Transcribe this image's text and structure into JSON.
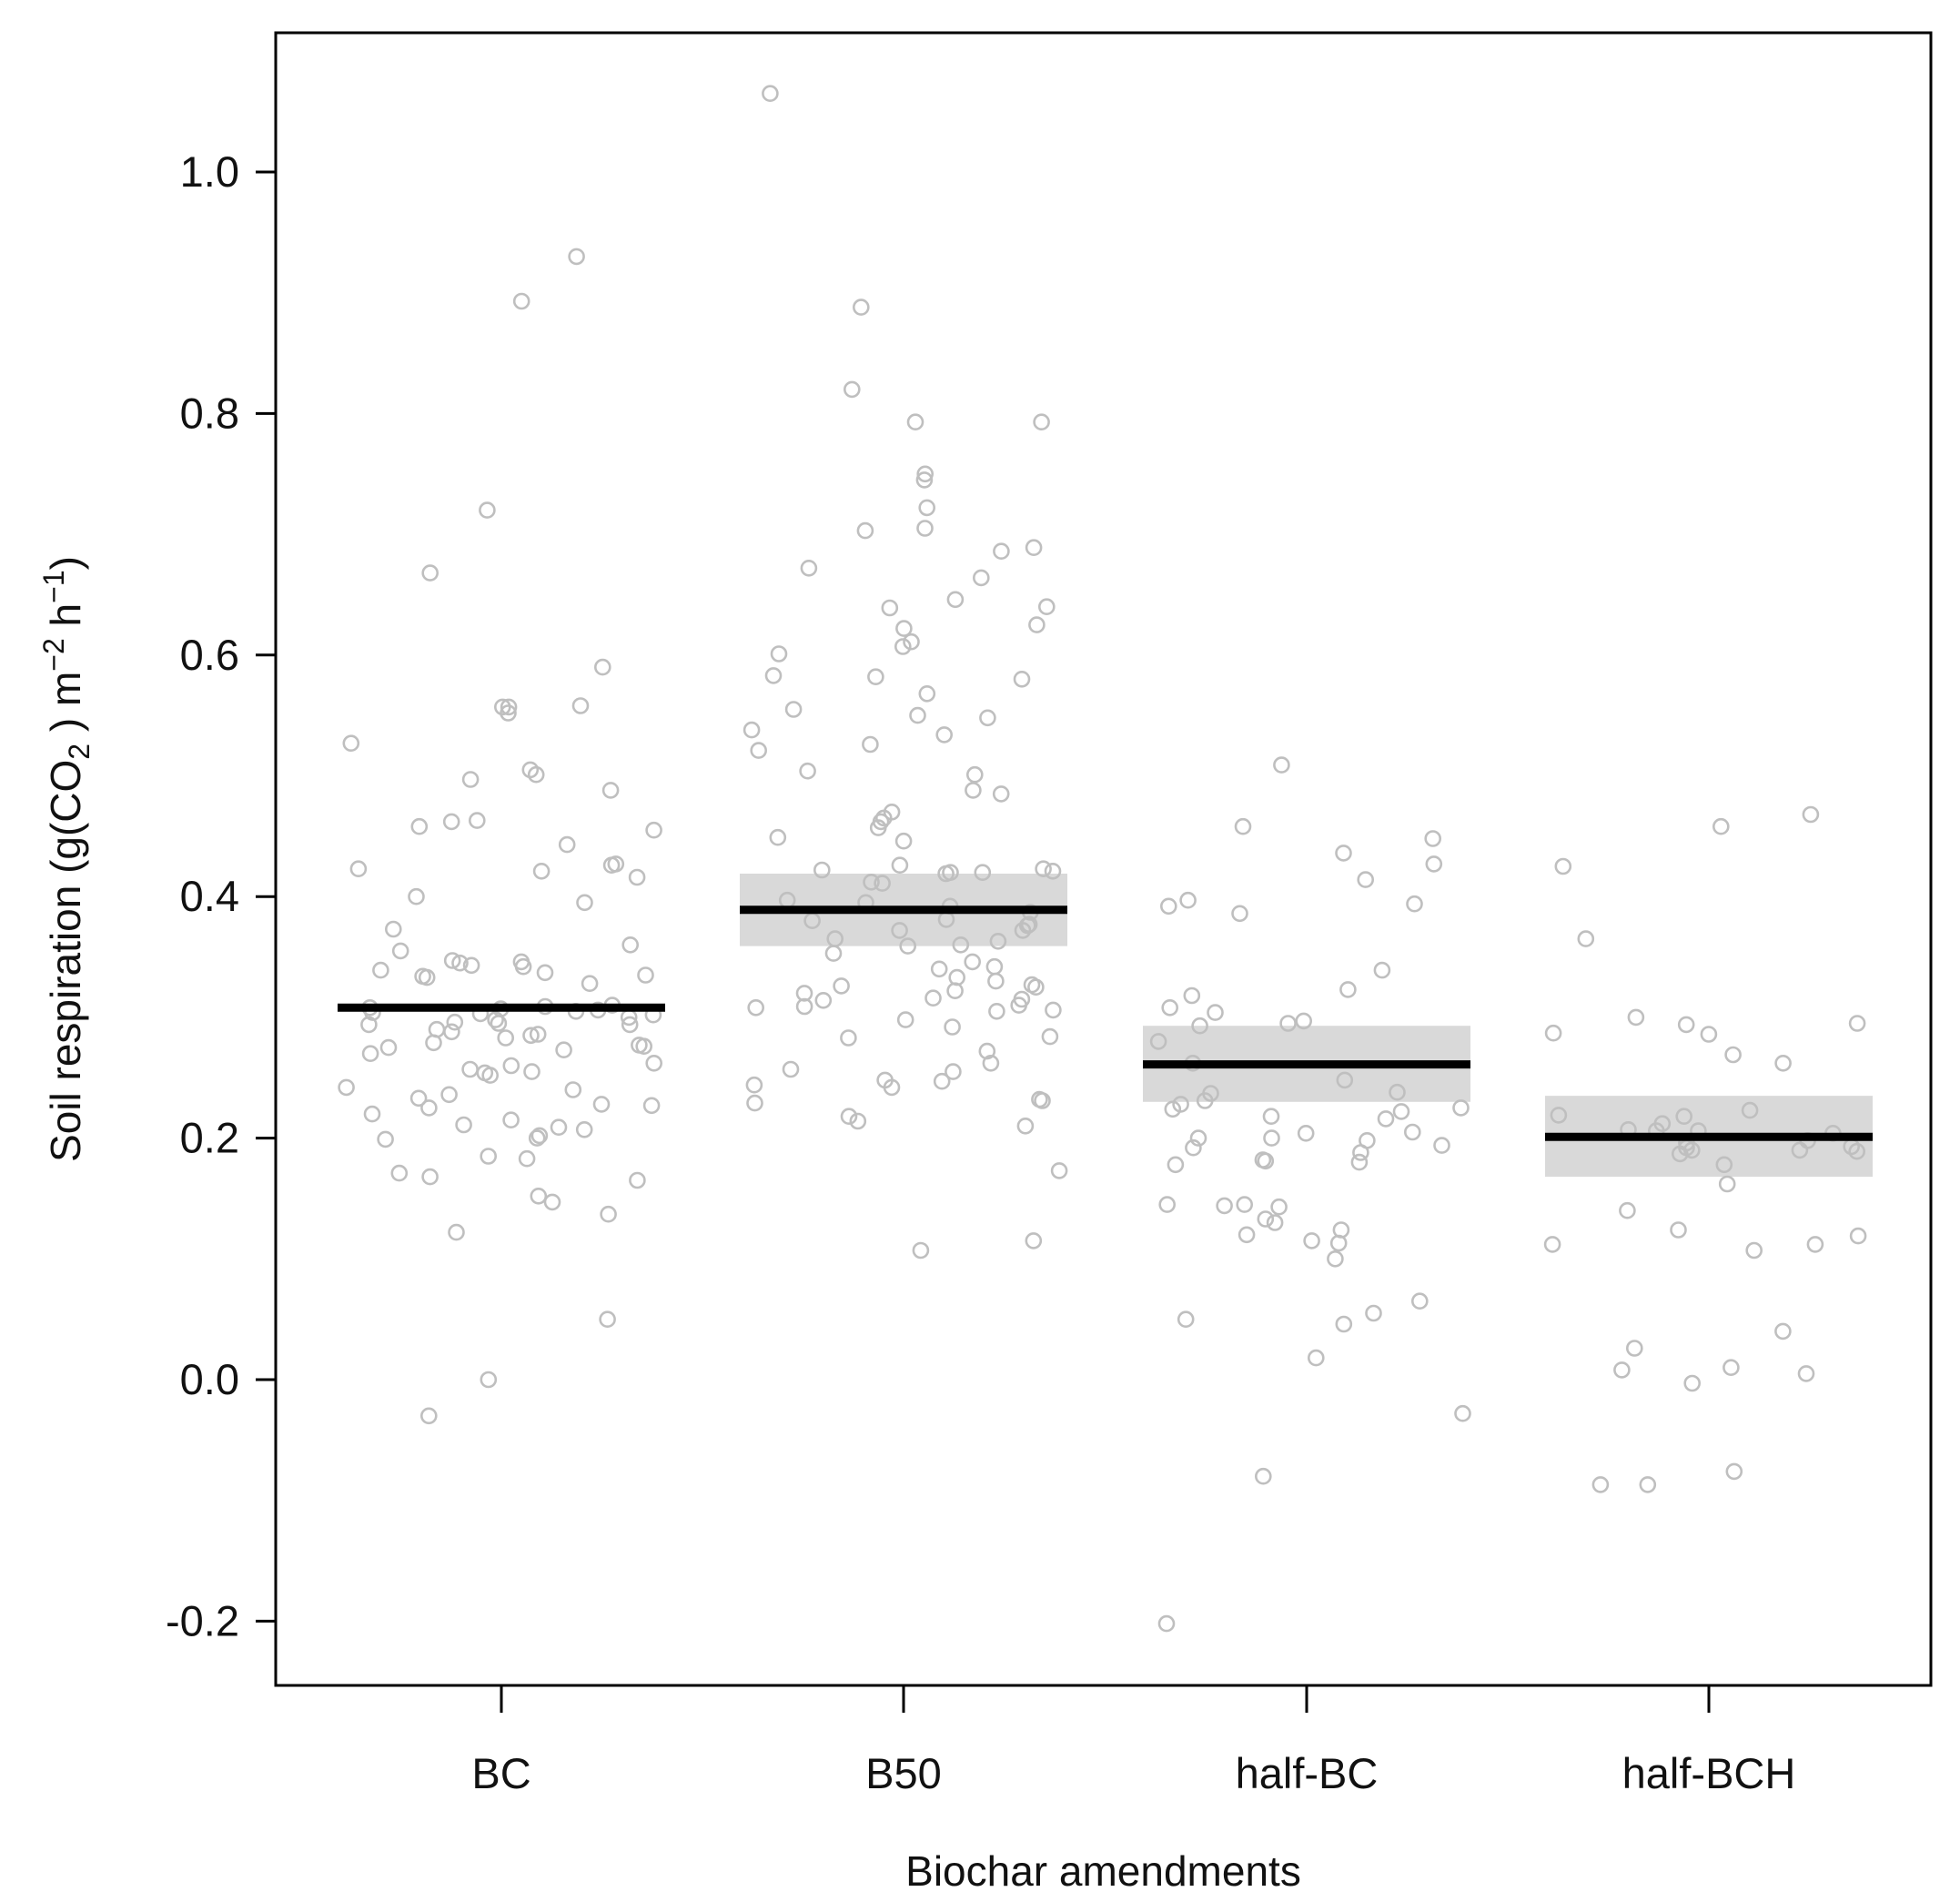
{
  "chart_data": {
    "type": "scatter",
    "xlabel": "Biochar amendments",
    "ylabel": {
      "parts": [
        "Soil respiration (g(CO",
        "2",
        " ) m",
        "−2",
        " h",
        "−1",
        ")"
      ]
    },
    "categories": [
      "BC",
      "B50",
      "half-BC",
      "half-BCH"
    ],
    "ylim": [
      -0.25,
      1.12
    ],
    "yticks": [
      -0.2,
      0.0,
      0.2,
      0.4,
      0.6,
      0.8,
      1.0
    ],
    "ytick_labels": [
      "-0.2",
      "0.0",
      "0.2",
      "0.4",
      "0.6",
      "0.8",
      "1.0"
    ],
    "grid": false,
    "colors": {
      "points": "#bfbfbf",
      "mean_line": "#000000",
      "ci_band": "#d9d9d9",
      "axis": "#000000"
    },
    "summary": [
      {
        "category": "BC",
        "mean": 0.308,
        "ci_low": 0.308,
        "ci_high": 0.308
      },
      {
        "category": "B50",
        "mean": 0.389,
        "ci_low": 0.359,
        "ci_high": 0.419
      },
      {
        "category": "half-BC",
        "mean": 0.261,
        "ci_low": 0.23,
        "ci_high": 0.293
      },
      {
        "category": "half-BCH",
        "mean": 0.201,
        "ci_low": 0.168,
        "ci_high": 0.235
      }
    ],
    "series": [
      {
        "category": "BC",
        "values": [
          0.93,
          0.893,
          0.72,
          0.668,
          0.59,
          0.558,
          0.557,
          0.557,
          0.552,
          0.527,
          0.505,
          0.501,
          0.497,
          0.488,
          0.462,
          0.463,
          0.458,
          0.455,
          0.443,
          0.427,
          0.426,
          0.423,
          0.421,
          0.416,
          0.4,
          0.395,
          0.373,
          0.36,
          0.355,
          0.347,
          0.346,
          0.345,
          0.343,
          0.342,
          0.339,
          0.337,
          0.335,
          0.334,
          0.333,
          0.328,
          0.31,
          0.309,
          0.308,
          0.307,
          0.306,
          0.305,
          0.304,
          0.303,
          0.302,
          0.3,
          0.298,
          0.296,
          0.295,
          0.294,
          0.294,
          0.29,
          0.288,
          0.286,
          0.285,
          0.283,
          0.279,
          0.277,
          0.276,
          0.275,
          0.273,
          0.27,
          0.262,
          0.26,
          0.257,
          0.255,
          0.254,
          0.252,
          0.242,
          0.24,
          0.236,
          0.233,
          0.228,
          0.227,
          0.225,
          0.22,
          0.215,
          0.211,
          0.209,
          0.207,
          0.202,
          0.2,
          0.199,
          0.185,
          0.183,
          0.171,
          0.168,
          0.165,
          0.152,
          0.147,
          0.137,
          0.122,
          0.05,
          0.0,
          -0.03
        ]
      },
      {
        "category": "B50",
        "values": [
          1.065,
          0.888,
          0.82,
          0.793,
          0.793,
          0.75,
          0.745,
          0.722,
          0.705,
          0.703,
          0.689,
          0.686,
          0.672,
          0.664,
          0.646,
          0.64,
          0.639,
          0.625,
          0.622,
          0.611,
          0.607,
          0.601,
          0.583,
          0.582,
          0.58,
          0.568,
          0.555,
          0.55,
          0.548,
          0.538,
          0.534,
          0.521,
          0.526,
          0.504,
          0.501,
          0.488,
          0.485,
          0.47,
          0.465,
          0.462,
          0.457,
          0.449,
          0.446,
          0.426,
          0.423,
          0.422,
          0.421,
          0.42,
          0.42,
          0.419,
          0.412,
          0.411,
          0.397,
          0.395,
          0.392,
          0.387,
          0.381,
          0.38,
          0.377,
          0.376,
          0.372,
          0.372,
          0.365,
          0.363,
          0.36,
          0.359,
          0.353,
          0.346,
          0.342,
          0.34,
          0.333,
          0.33,
          0.327,
          0.326,
          0.325,
          0.322,
          0.32,
          0.316,
          0.315,
          0.314,
          0.31,
          0.309,
          0.308,
          0.306,
          0.305,
          0.298,
          0.292,
          0.284,
          0.283,
          0.272,
          0.262,
          0.257,
          0.255,
          0.248,
          0.247,
          0.244,
          0.242,
          0.232,
          0.231,
          0.229,
          0.218,
          0.214,
          0.21,
          0.173,
          0.115,
          0.107
        ]
      },
      {
        "category": "half-BC",
        "values": [
          0.509,
          0.458,
          0.448,
          0.436,
          0.427,
          0.414,
          0.397,
          0.394,
          0.392,
          0.386,
          0.339,
          0.323,
          0.318,
          0.308,
          0.304,
          0.297,
          0.295,
          0.293,
          0.28,
          0.262,
          0.248,
          0.238,
          0.237,
          0.231,
          0.228,
          0.225,
          0.224,
          0.222,
          0.218,
          0.216,
          0.205,
          0.204,
          0.2,
          0.2,
          0.198,
          0.194,
          0.192,
          0.188,
          0.182,
          0.181,
          0.18,
          0.178,
          0.145,
          0.144,
          0.143,
          0.145,
          0.133,
          0.13,
          0.124,
          0.12,
          0.115,
          0.113,
          0.1,
          0.065,
          0.055,
          0.05,
          0.046,
          0.018,
          -0.028,
          -0.08,
          -0.202
        ]
      },
      {
        "category": "half-BCH",
        "values": [
          0.468,
          0.458,
          0.425,
          0.365,
          0.3,
          0.295,
          0.294,
          0.287,
          0.286,
          0.269,
          0.262,
          0.223,
          0.219,
          0.218,
          0.212,
          0.207,
          0.206,
          0.206,
          0.204,
          0.198,
          0.196,
          0.193,
          0.192,
          0.19,
          0.19,
          0.189,
          0.187,
          0.178,
          0.162,
          0.14,
          0.124,
          0.119,
          0.112,
          0.112,
          0.107,
          0.04,
          0.026,
          0.01,
          0.008,
          0.005,
          -0.003,
          -0.076,
          -0.087,
          -0.087
        ]
      }
    ]
  }
}
